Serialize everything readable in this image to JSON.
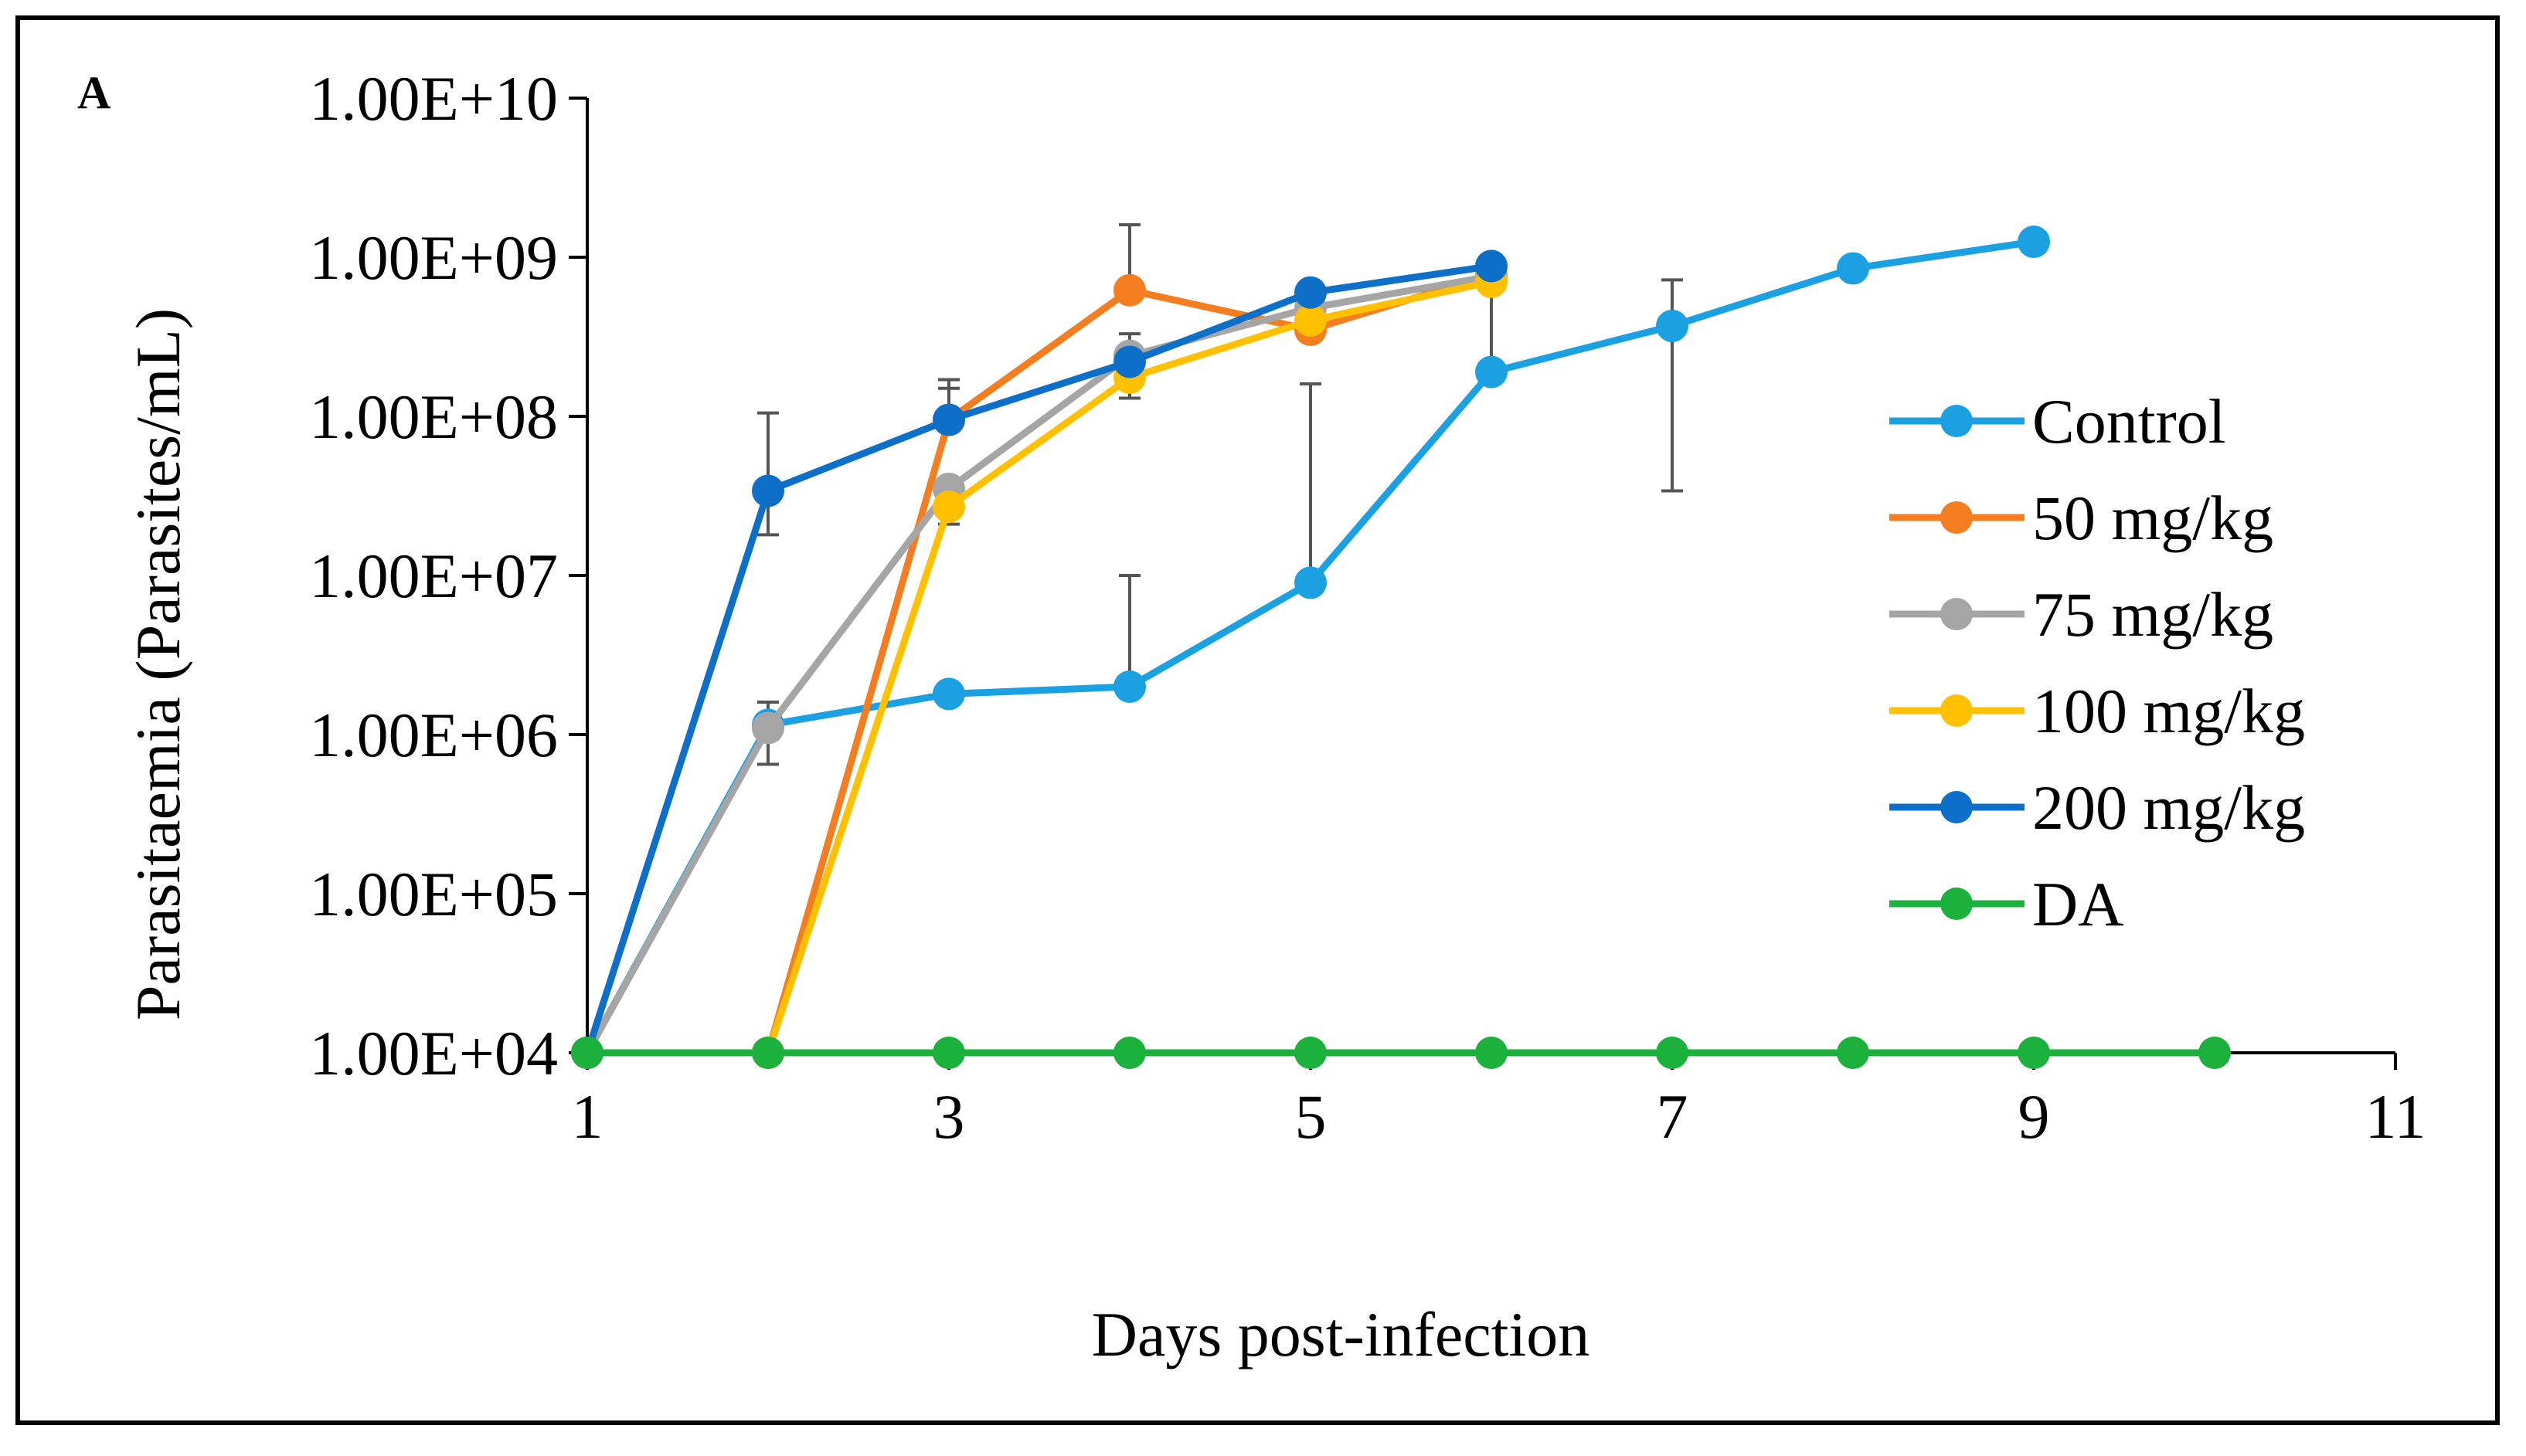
{
  "chart_data": {
    "type": "line",
    "panel_label": "A",
    "xlabel": "Days post-infection",
    "ylabel": "Parasitaemia (Parasites/mL)",
    "yscale": "log",
    "xlim": [
      1,
      11
    ],
    "ylim": [
      10000,
      10000000000
    ],
    "xticks": [
      1,
      3,
      5,
      7,
      9,
      11
    ],
    "xtick_labels": [
      "1",
      "3",
      "5",
      "7",
      "9",
      "11"
    ],
    "yticks": [
      10000,
      100000,
      1000000,
      10000000,
      100000000,
      1000000000,
      10000000000
    ],
    "ytick_labels": [
      "1.00E+04",
      "1.00E+05",
      "1.00E+06",
      "1.00E+07",
      "1.00E+08",
      "1.00E+09",
      "1.00E+10"
    ],
    "legend_position": "right",
    "series": [
      {
        "name": "Control",
        "color": "#1BA1E2",
        "x": [
          1,
          2,
          3,
          4,
          5,
          6,
          7,
          8,
          9
        ],
        "y": [
          10000,
          1150000,
          1800000,
          2000000,
          9000000,
          190000000,
          370000000,
          850000000,
          1250000000
        ],
        "err_upper": [
          null,
          1600000,
          null,
          10000000,
          160000000,
          900000000,
          720000000,
          null,
          null
        ],
        "err_lower": [
          null,
          650000,
          null,
          null,
          null,
          null,
          34000000,
          null,
          null
        ]
      },
      {
        "name": "50 mg/kg",
        "color": "#F47D20",
        "x": [
          1,
          2,
          3,
          4,
          5,
          6
        ],
        "y": [
          10000,
          10000,
          95000000,
          620000000,
          350000000,
          780000000
        ],
        "err_upper": [
          null,
          null,
          170000000,
          1600000000,
          300000000,
          null
        ],
        "err_lower": [
          null,
          null,
          null,
          null,
          null,
          null
        ]
      },
      {
        "name": "75 mg/kg",
        "color": "#A5A5A5",
        "x": [
          1,
          2,
          3,
          4,
          5,
          6
        ],
        "y": [
          10000,
          1100000,
          35000000,
          240000000,
          480000000,
          760000000
        ],
        "err_upper": [
          null,
          null,
          null,
          330000000,
          null,
          null
        ],
        "err_lower": [
          null,
          null,
          null,
          null,
          null,
          null
        ]
      },
      {
        "name": "100 mg/kg",
        "color": "#FFC000",
        "x": [
          1,
          2,
          3,
          4,
          5,
          6
        ],
        "y": [
          10000,
          10000,
          27000000,
          175000000,
          400000000,
          700000000
        ],
        "err_upper": [
          null,
          null,
          null,
          null,
          null,
          null
        ],
        "err_lower": [
          null,
          null,
          21000000,
          130000000,
          null,
          null
        ]
      },
      {
        "name": "200 mg/kg",
        "color": "#0D6FC8",
        "x": [
          1,
          2,
          3,
          4,
          5,
          6
        ],
        "y": [
          10000,
          34000000,
          95000000,
          220000000,
          600000000,
          880000000
        ],
        "err_upper": [
          null,
          105000000,
          150000000,
          null,
          null,
          null
        ],
        "err_lower": [
          null,
          18000000,
          null,
          null,
          null,
          null
        ]
      },
      {
        "name": "DA",
        "color": "#1CB03C",
        "x": [
          1,
          2,
          3,
          4,
          5,
          6,
          7,
          8,
          9,
          10
        ],
        "y": [
          10000,
          10000,
          10000,
          10000,
          10000,
          10000,
          10000,
          10000,
          10000,
          10000
        ],
        "err_upper": [],
        "err_lower": []
      }
    ]
  }
}
